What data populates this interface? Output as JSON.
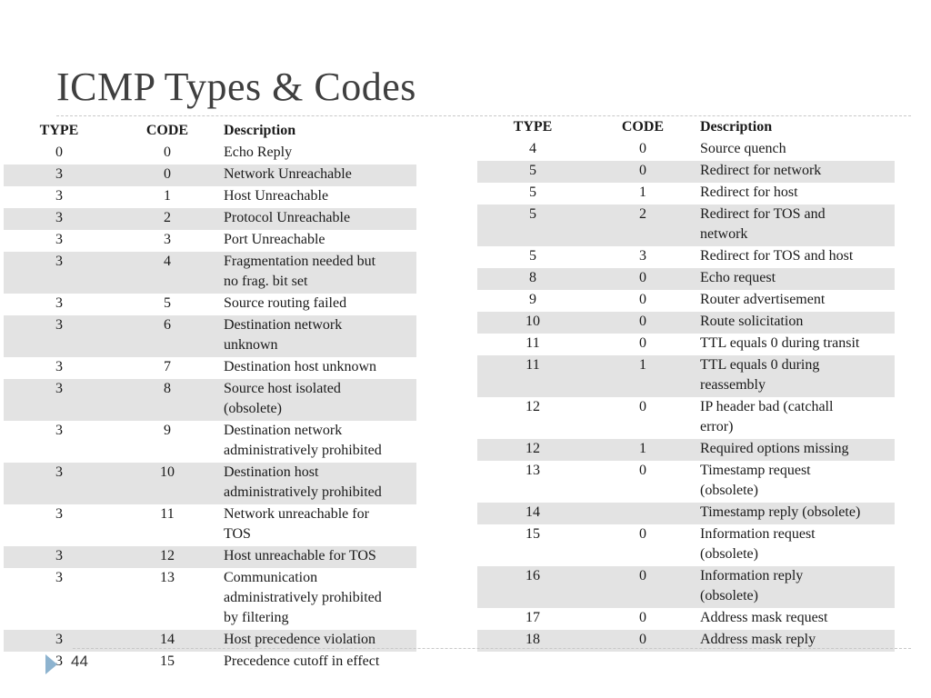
{
  "title": "ICMP Types & Codes",
  "page_number": "44",
  "headers": {
    "type": "TYPE",
    "code": "CODE",
    "description": "Description"
  },
  "left_rows": [
    {
      "type": "0",
      "code": "0",
      "desc": "Echo Reply"
    },
    {
      "type": "3",
      "code": "0",
      "desc": "Network Unreachable"
    },
    {
      "type": "3",
      "code": "1",
      "desc": "Host Unreachable"
    },
    {
      "type": "3",
      "code": "2",
      "desc": "Protocol Unreachable"
    },
    {
      "type": "3",
      "code": "3",
      "desc": "Port Unreachable"
    },
    {
      "type": "3",
      "code": "4",
      "desc": "Fragmentation needed but\nno frag. bit set"
    },
    {
      "type": "3",
      "code": "5",
      "desc": "Source routing failed"
    },
    {
      "type": "3",
      "code": "6",
      "desc": "Destination network\nunknown"
    },
    {
      "type": "3",
      "code": "7",
      "desc": "Destination host unknown"
    },
    {
      "type": "3",
      "code": "8",
      "desc": "Source host isolated\n(obsolete)"
    },
    {
      "type": "3",
      "code": "9",
      "desc": "Destination network\nadministratively prohibited"
    },
    {
      "type": "3",
      "code": "10",
      "desc": "Destination host\nadministratively prohibited"
    },
    {
      "type": "3",
      "code": "11",
      "desc": "Network unreachable for\nTOS"
    },
    {
      "type": "3",
      "code": "12",
      "desc": "Host unreachable for TOS"
    },
    {
      "type": "3",
      "code": "13",
      "desc": "Communication\nadministratively prohibited\nby filtering"
    },
    {
      "type": "3",
      "code": "14",
      "desc": "Host precedence violation"
    },
    {
      "type": "3",
      "code": "15",
      "desc": "Precedence cutoff in effect"
    }
  ],
  "right_rows": [
    {
      "type": "4",
      "code": "0",
      "desc": "Source quench"
    },
    {
      "type": "5",
      "code": "0",
      "desc": "Redirect for network"
    },
    {
      "type": "5",
      "code": "1",
      "desc": "Redirect for host"
    },
    {
      "type": "5",
      "code": "2",
      "desc": "Redirect for TOS and\nnetwork"
    },
    {
      "type": "5",
      "code": "3",
      "desc": "Redirect for TOS and host"
    },
    {
      "type": "8",
      "code": "0",
      "desc": "Echo request"
    },
    {
      "type": "9",
      "code": "0",
      "desc": "Router advertisement"
    },
    {
      "type": "10",
      "code": "0",
      "desc": "Route solicitation"
    },
    {
      "type": "11",
      "code": "0",
      "desc": "TTL equals 0 during transit"
    },
    {
      "type": "11",
      "code": "1",
      "desc": "TTL equals 0 during\nreassembly"
    },
    {
      "type": "12",
      "code": "0",
      "desc": "IP header bad (catchall\nerror)"
    },
    {
      "type": "12",
      "code": "1",
      "desc": "Required options missing"
    },
    {
      "type": "13",
      "code": "0",
      "desc": "Timestamp request\n(obsolete)"
    },
    {
      "type": "14",
      "code": "",
      "desc": "Timestamp reply (obsolete)"
    },
    {
      "type": "15",
      "code": "0",
      "desc": "Information request\n(obsolete)"
    },
    {
      "type": "16",
      "code": "0",
      "desc": "Information reply\n(obsolete)"
    },
    {
      "type": "17",
      "code": "0",
      "desc": "Address mask request"
    },
    {
      "type": "18",
      "code": "0",
      "desc": "Address mask reply"
    }
  ]
}
